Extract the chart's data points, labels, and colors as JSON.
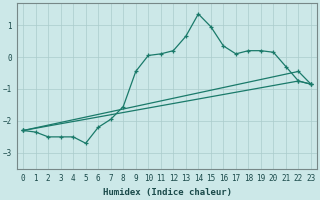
{
  "xlabel": "Humidex (Indice chaleur)",
  "bg_color": "#cce8e8",
  "grid_color": "#aacccc",
  "line_color": "#1a7a6a",
  "xlim": [
    -0.5,
    23.5
  ],
  "ylim": [
    -3.5,
    1.7
  ],
  "xticks": [
    0,
    1,
    2,
    3,
    4,
    5,
    6,
    7,
    8,
    9,
    10,
    11,
    12,
    13,
    14,
    15,
    16,
    17,
    18,
    19,
    20,
    21,
    22,
    23
  ],
  "yticks": [
    -3,
    -2,
    -1,
    0,
    1
  ],
  "line1_x": [
    0,
    1,
    2,
    3,
    4,
    5,
    6,
    7,
    8,
    9,
    10,
    11,
    12,
    13,
    14,
    15,
    16,
    17,
    18,
    19,
    20,
    21,
    22,
    23
  ],
  "line1_y": [
    -2.3,
    -2.35,
    -2.5,
    -2.5,
    -2.5,
    -2.7,
    -2.2,
    -1.95,
    -1.55,
    -0.45,
    0.05,
    0.1,
    0.2,
    0.65,
    1.35,
    0.95,
    0.35,
    0.1,
    0.2,
    0.2,
    0.15,
    -0.3,
    -0.75,
    -0.85
  ],
  "line2_x": [
    0,
    22,
    23
  ],
  "line2_y": [
    -2.3,
    -0.75,
    -0.85
  ],
  "line3_x": [
    0,
    22,
    23
  ],
  "line3_y": [
    -2.3,
    -0.45,
    -0.85
  ]
}
